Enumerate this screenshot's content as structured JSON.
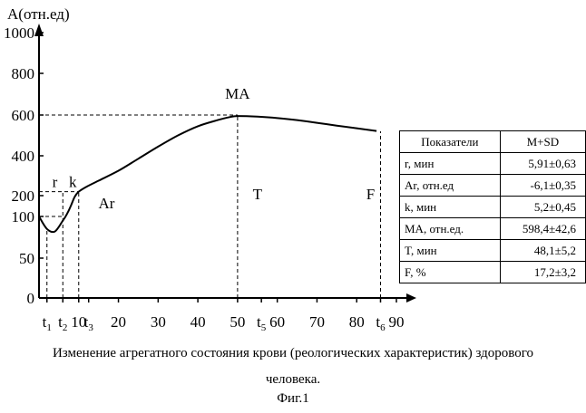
{
  "chart_data": {
    "type": "line",
    "ylabel": "A(отн.ед)",
    "ylim": [
      0,
      1000
    ],
    "xlim": [
      0,
      90
    ],
    "y_ticks": [
      {
        "value": 0,
        "label": "0"
      },
      {
        "value": 50,
        "label": "50"
      },
      {
        "value": 100,
        "label": "100"
      },
      {
        "value": 200,
        "label": "200"
      },
      {
        "value": 400,
        "label": "400"
      },
      {
        "value": 600,
        "label": "600"
      },
      {
        "value": 800,
        "label": "800"
      },
      {
        "value": 1000,
        "label": "1000"
      }
    ],
    "x_ticks": [
      {
        "value": 2,
        "label": "t1",
        "base": "t",
        "sub": "1"
      },
      {
        "value": 6,
        "label": "t2",
        "base": "t",
        "sub": "2"
      },
      {
        "value": 10,
        "label": "10",
        "base": "10",
        "sub": ""
      },
      {
        "value": 12.5,
        "label": "t3",
        "base": "t",
        "sub": "3"
      },
      {
        "value": 20,
        "label": "20",
        "base": "20",
        "sub": ""
      },
      {
        "value": 30,
        "label": "30",
        "base": "30",
        "sub": ""
      },
      {
        "value": 40,
        "label": "40",
        "base": "40",
        "sub": ""
      },
      {
        "value": 50,
        "label": "50",
        "base": "50",
        "sub": ""
      },
      {
        "value": 56,
        "label": "t5",
        "base": "t",
        "sub": "5"
      },
      {
        "value": 60,
        "label": "60",
        "base": "60",
        "sub": ""
      },
      {
        "value": 70,
        "label": "70",
        "base": "70",
        "sub": ""
      },
      {
        "value": 80,
        "label": "80",
        "base": "80",
        "sub": ""
      },
      {
        "value": 86,
        "label": "t6",
        "base": "t",
        "sub": "6"
      },
      {
        "value": 90,
        "label": "90",
        "base": "90",
        "sub": ""
      }
    ],
    "series": [
      {
        "x": [
          0,
          2,
          4,
          6,
          7,
          8,
          9,
          10,
          12,
          15,
          20,
          25,
          30,
          35,
          40,
          45,
          48,
          50,
          55,
          60,
          65,
          70,
          75,
          80,
          85
        ],
        "y": [
          100,
          85,
          82,
          95,
          110,
          150,
          195,
          220,
          245,
          275,
          325,
          385,
          445,
          500,
          545,
          575,
          590,
          595,
          592,
          585,
          575,
          562,
          548,
          535,
          522
        ]
      }
    ],
    "guide_lines": [
      {
        "type": "h",
        "y": 600,
        "x_from": 0,
        "x_to": 50
      },
      {
        "type": "h",
        "y": 220,
        "x_from": 0,
        "x_to": 10
      },
      {
        "type": "h",
        "y": 100,
        "x_from": 0,
        "x_to": 6
      },
      {
        "type": "v",
        "x": 2,
        "y_to": 85
      },
      {
        "type": "v",
        "x": 6,
        "y_to": 220
      },
      {
        "type": "v",
        "x": 10,
        "y_to": 220
      },
      {
        "type": "v",
        "x": 50,
        "y_to": 595
      },
      {
        "type": "v",
        "x": 86,
        "y_to": 520
      }
    ],
    "region_labels": [
      {
        "text": "r",
        "x": 4,
        "y": 270
      },
      {
        "text": "k",
        "x": 8.5,
        "y": 270
      },
      {
        "text": "Ar",
        "x": 17,
        "y": 165
      },
      {
        "text": "MA",
        "x": 50,
        "y": 705
      },
      {
        "text": "T",
        "x": 55,
        "y": 210
      },
      {
        "text": "F",
        "x": 83.5,
        "y": 210
      }
    ]
  },
  "table": {
    "headers": [
      "Показатели",
      "M+SD"
    ],
    "rows": [
      [
        "r, мин",
        "5,91±0,63"
      ],
      [
        "Ar, отн.ед",
        "-6,1±0,35"
      ],
      [
        "k, мин",
        "5,2±0,45"
      ],
      [
        "MA, отн.ед.",
        "598,4±42,6"
      ],
      [
        "T, мин",
        "48,1±5,2"
      ],
      [
        "F, %",
        "17,2±3,2"
      ]
    ]
  },
  "caption": {
    "line1": "Изменение агрегатного состояния крови (реологических характеристик) здорового",
    "line2": "человека.",
    "fig": "Фиг.1"
  }
}
